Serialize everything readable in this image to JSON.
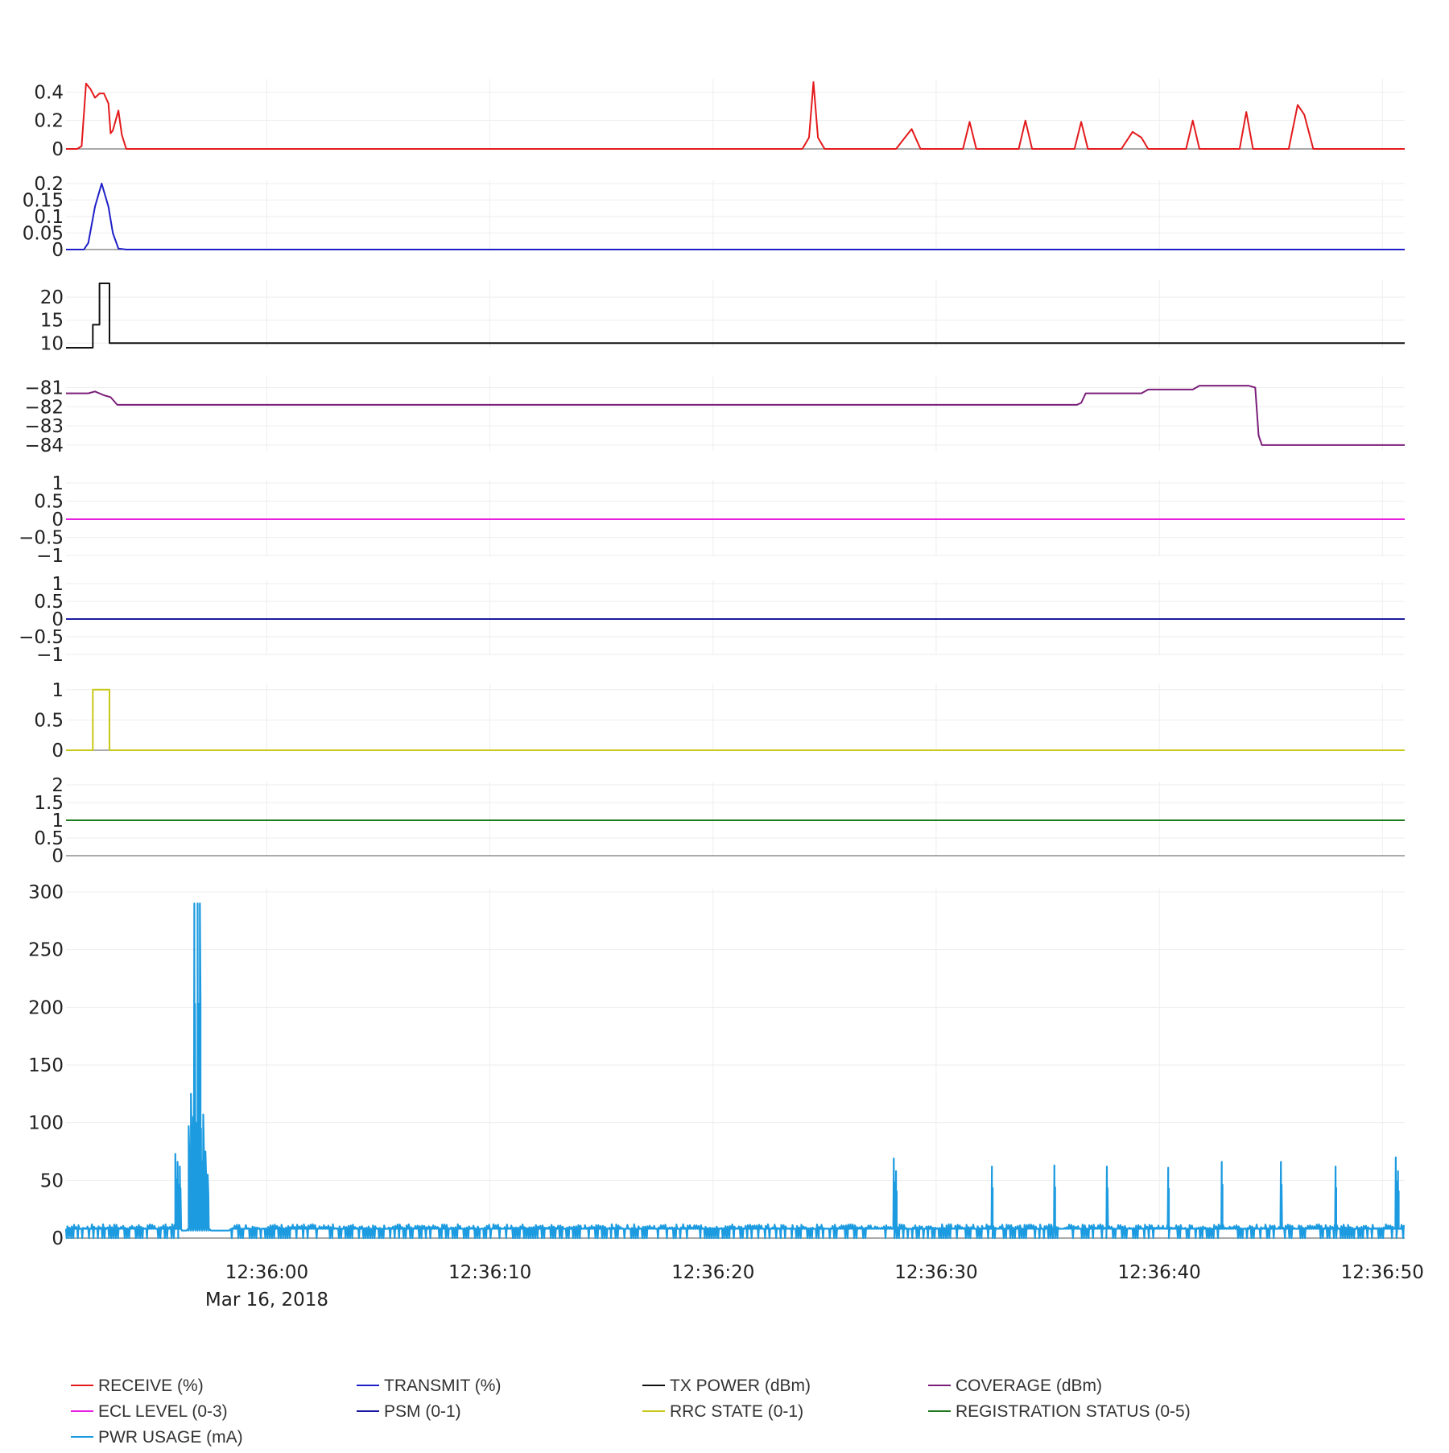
{
  "chart_data": {
    "type": "line",
    "layout": "stacked-subplots",
    "shared_x_axis": {
      "range": [
        "12:35:51",
        "12:36:51"
      ],
      "tick_labels": [
        "12:36:00",
        "12:36:10",
        "12:36:20",
        "12:36:30",
        "12:36:40",
        "12:36:50"
      ],
      "date_label": "Mar 16, 2018"
    },
    "grid": true,
    "legend_placement": "bottom",
    "subplots": [
      {
        "name": "RECEIVE (%)",
        "color": "#e31a1c",
        "ylim": [
          0,
          0.47
        ],
        "ticks": [
          "0",
          "0.2",
          "0.4"
        ],
        "tick_values": [
          0,
          0.2,
          0.4
        ],
        "shape": "smooth",
        "points": [
          [
            0,
            0
          ],
          [
            0.5,
            0
          ],
          [
            0.7,
            0.02
          ],
          [
            0.9,
            0.46
          ],
          [
            1.1,
            0.42
          ],
          [
            1.3,
            0.36
          ],
          [
            1.5,
            0.39
          ],
          [
            1.7,
            0.39
          ],
          [
            1.9,
            0.32
          ],
          [
            2.0,
            0.11
          ],
          [
            2.1,
            0.13
          ],
          [
            2.35,
            0.27
          ],
          [
            2.5,
            0.1
          ],
          [
            2.7,
            0.0
          ],
          [
            33.0,
            0
          ],
          [
            33.3,
            0.08
          ],
          [
            33.5,
            0.47
          ],
          [
            33.7,
            0.08
          ],
          [
            34.0,
            0
          ],
          [
            37.2,
            0
          ],
          [
            37.9,
            0.14
          ],
          [
            38.3,
            0
          ],
          [
            40.2,
            0
          ],
          [
            40.5,
            0.19
          ],
          [
            40.8,
            0
          ],
          [
            42.7,
            0
          ],
          [
            43.0,
            0.2
          ],
          [
            43.3,
            0
          ],
          [
            45.2,
            0
          ],
          [
            45.5,
            0.19
          ],
          [
            45.8,
            0
          ],
          [
            47.3,
            0
          ],
          [
            47.8,
            0.12
          ],
          [
            48.2,
            0.08
          ],
          [
            48.5,
            0
          ],
          [
            50.2,
            0
          ],
          [
            50.5,
            0.2
          ],
          [
            50.8,
            0
          ],
          [
            52.6,
            0
          ],
          [
            52.9,
            0.26
          ],
          [
            53.2,
            0
          ],
          [
            54.8,
            0
          ],
          [
            55.2,
            0.31
          ],
          [
            55.5,
            0.24
          ],
          [
            55.9,
            0
          ],
          [
            60,
            0
          ]
        ]
      },
      {
        "name": "TRANSMIT (%)",
        "color": "#1f1fc8",
        "ylim": [
          0,
          0.2
        ],
        "ticks": [
          "0",
          "0.05",
          "0.1",
          "0.15",
          "0.2"
        ],
        "tick_values": [
          0,
          0.05,
          0.1,
          0.15,
          0.2
        ],
        "shape": "smooth",
        "points": [
          [
            0,
            0
          ],
          [
            0.8,
            0
          ],
          [
            1.0,
            0.02
          ],
          [
            1.3,
            0.13
          ],
          [
            1.6,
            0.2
          ],
          [
            1.9,
            0.13
          ],
          [
            2.1,
            0.05
          ],
          [
            2.35,
            0.003
          ],
          [
            2.7,
            0
          ],
          [
            60,
            0
          ]
        ]
      },
      {
        "name": "TX POWER (dBm)",
        "color": "#111111",
        "ylim": [
          9,
          23
        ],
        "ticks": [
          "10",
          "15",
          "20"
        ],
        "tick_values": [
          10,
          15,
          20
        ],
        "shape": "step",
        "points": [
          [
            0,
            9
          ],
          [
            1.2,
            9
          ],
          [
            1.2,
            14
          ],
          [
            1.5,
            14
          ],
          [
            1.5,
            23
          ],
          [
            1.95,
            23
          ],
          [
            1.95,
            10
          ],
          [
            60,
            10
          ]
        ]
      },
      {
        "name": "COVERAGE (dBm)",
        "color": "#7b1e7a",
        "ylim": [
          -84.3,
          -80.6
        ],
        "ticks": [
          "−84",
          "−83",
          "−82",
          "−81"
        ],
        "tick_values": [
          -84,
          -83,
          -82,
          -81
        ],
        "shape": "smooth",
        "points": [
          [
            0,
            -81.3
          ],
          [
            1.0,
            -81.3
          ],
          [
            1.3,
            -81.2
          ],
          [
            1.7,
            -81.4
          ],
          [
            2.0,
            -81.5
          ],
          [
            2.3,
            -81.9
          ],
          [
            2.6,
            -81.9
          ],
          [
            45.3,
            -81.9
          ],
          [
            45.5,
            -81.8
          ],
          [
            45.7,
            -81.3
          ],
          [
            46.0,
            -81.3
          ],
          [
            48.2,
            -81.3
          ],
          [
            48.5,
            -81.1
          ],
          [
            50.5,
            -81.1
          ],
          [
            50.8,
            -80.9
          ],
          [
            53.0,
            -80.9
          ],
          [
            53.3,
            -81.0
          ],
          [
            53.45,
            -83.5
          ],
          [
            53.6,
            -84.0
          ],
          [
            60,
            -84.0
          ]
        ]
      },
      {
        "name": "ECL LEVEL (0-3)",
        "color": "#e81fe0",
        "ylim": [
          -1,
          1
        ],
        "ticks": [
          "−1",
          "−0.5",
          "0",
          "0.5",
          "1"
        ],
        "tick_values": [
          -1,
          -0.5,
          0,
          0.5,
          1
        ],
        "shape": "linear",
        "points": [
          [
            0,
            0
          ],
          [
            60,
            0
          ]
        ]
      },
      {
        "name": "PSM (0-1)",
        "color": "#1a1aa0",
        "ylim": [
          -1,
          1
        ],
        "ticks": [
          "−1",
          "−0.5",
          "0",
          "0.5",
          "1"
        ],
        "tick_values": [
          -1,
          -0.5,
          0,
          0.5,
          1
        ],
        "shape": "linear",
        "points": [
          [
            0,
            0
          ],
          [
            60,
            0
          ]
        ]
      },
      {
        "name": "RRC STATE (0-1)",
        "color": "#c8c81a",
        "ylim": [
          0,
          1.05
        ],
        "ticks": [
          "0",
          "0.5",
          "1"
        ],
        "tick_values": [
          0,
          0.5,
          1
        ],
        "shape": "step",
        "points": [
          [
            0,
            0
          ],
          [
            1.2,
            0
          ],
          [
            1.2,
            1
          ],
          [
            1.95,
            1
          ],
          [
            1.95,
            0
          ],
          [
            60,
            0
          ]
        ]
      },
      {
        "name": "REGISTRATION STATUS (0-5)",
        "color": "#1f7a1f",
        "ylim": [
          0,
          2
        ],
        "ticks": [
          "0",
          "0.5",
          "1",
          "1.5",
          "2"
        ],
        "tick_values": [
          0,
          0.5,
          1,
          1.5,
          2
        ],
        "shape": "linear",
        "points": [
          [
            0,
            1
          ],
          [
            60,
            1
          ]
        ]
      },
      {
        "name": "PWR USAGE (mA)",
        "color": "#1c9be0",
        "ylim": [
          0,
          300
        ],
        "ticks": [
          "0",
          "50",
          "100",
          "150",
          "200",
          "250",
          "300"
        ],
        "tick_values": [
          0,
          50,
          100,
          150,
          200,
          250,
          300
        ],
        "shape": "linear",
        "baseline": 8,
        "noise_spikes_max": 12,
        "bursts": [
          [
            4.9,
            73
          ],
          [
            5.0,
            66
          ],
          [
            5.1,
            62
          ],
          [
            5.5,
            97
          ],
          [
            5.6,
            125
          ],
          [
            5.7,
            105
          ],
          [
            5.75,
            290
          ],
          [
            5.85,
            100
          ],
          [
            5.9,
            290
          ],
          [
            6.0,
            290
          ],
          [
            6.05,
            95
          ],
          [
            6.15,
            107
          ],
          [
            6.25,
            75
          ],
          [
            6.35,
            55
          ],
          [
            37.1,
            69
          ],
          [
            37.2,
            58
          ],
          [
            41.5,
            62
          ],
          [
            44.3,
            63
          ],
          [
            46.65,
            62
          ],
          [
            49.4,
            61
          ],
          [
            51.8,
            66
          ],
          [
            54.45,
            66
          ],
          [
            56.9,
            62
          ],
          [
            59.6,
            70
          ],
          [
            59.7,
            58
          ]
        ]
      }
    ]
  },
  "legend": [
    {
      "label": "RECEIVE (%)",
      "color": "#e31a1c"
    },
    {
      "label": "TRANSMIT (%)",
      "color": "#1f1fc8"
    },
    {
      "label": "TX POWER (dBm)",
      "color": "#111111"
    },
    {
      "label": "COVERAGE (dBm)",
      "color": "#7b1e7a"
    },
    {
      "label": "ECL LEVEL (0-3)",
      "color": "#e81fe0"
    },
    {
      "label": "PSM (0-1)",
      "color": "#1a1aa0"
    },
    {
      "label": "RRC STATE (0-1)",
      "color": "#c8c81a"
    },
    {
      "label": "REGISTRATION STATUS (0-5)",
      "color": "#1f7a1f"
    },
    {
      "label": "PWR USAGE (mA)",
      "color": "#1c9be0"
    }
  ]
}
